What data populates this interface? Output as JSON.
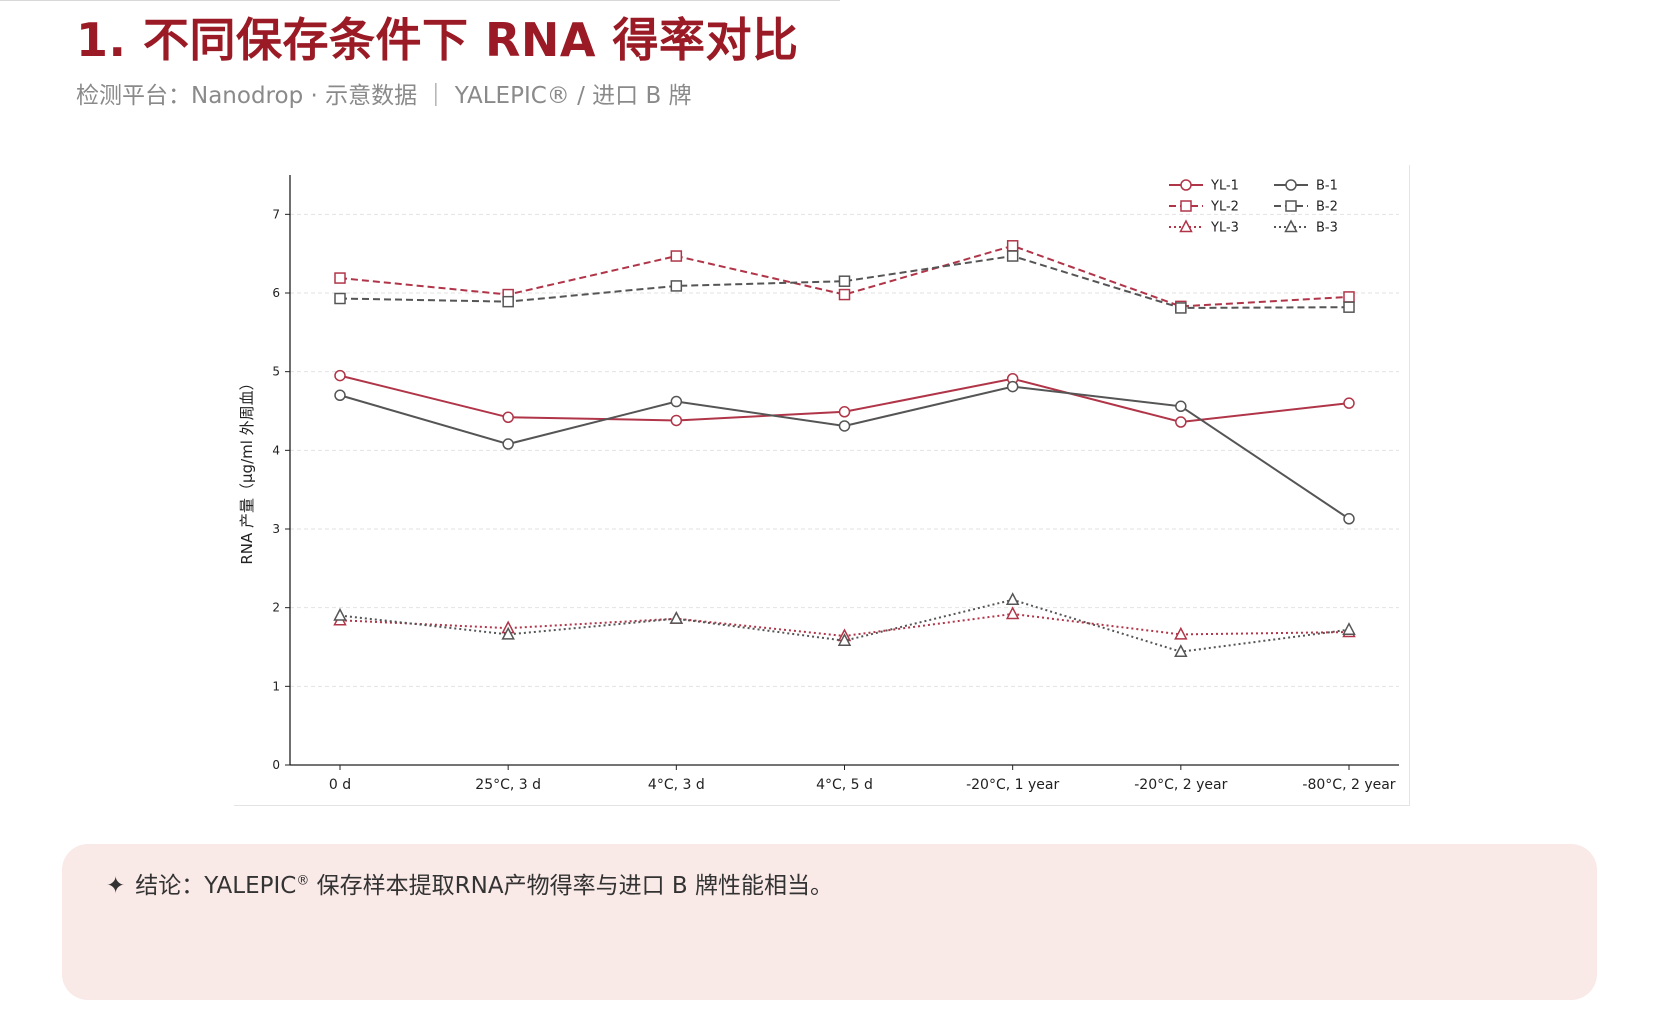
{
  "page": {
    "title": "1. 不同保存条件下 RNA 得率对比",
    "subtitle": "检测平台：Nanodrop · 示意数据  ｜  YALEPIC® / 进口 B 牌"
  },
  "conclusion": {
    "icon": "sparkle-icon",
    "prefix": "结论：YALEPIC",
    "reg": "®",
    "suffix": " 保存样本提取RNA产物得率与进口 B 牌性能相当。"
  },
  "colors": {
    "title": "#9a1a25",
    "yl": "#b03548",
    "b": "#555555",
    "panel_bg": "#f9e9e7"
  },
  "chart_data": {
    "type": "line",
    "ylabel": "RNA 产量（μg/ml 外周血）",
    "xlabel": "",
    "ylim": [
      0,
      7.5
    ],
    "yticks": [
      0,
      1,
      2,
      3,
      4,
      5,
      6,
      7
    ],
    "grid": "horizontal dashed",
    "legend_position": "top-right",
    "categories": [
      "0 d",
      "25°C, 3 d",
      "4°C, 3 d",
      "4°C, 5 d",
      "-20°C, 1 year",
      "-20°C, 2 year",
      "-80°C, 2 year"
    ],
    "series": [
      {
        "name": "YL-1",
        "color": "#b03548",
        "marker": "circle",
        "dash": "solid",
        "values": [
          4.95,
          4.42,
          4.38,
          4.49,
          4.91,
          4.36,
          4.6
        ]
      },
      {
        "name": "YL-2",
        "color": "#b03548",
        "marker": "square",
        "dash": "dashed",
        "values": [
          6.19,
          5.98,
          6.47,
          5.98,
          6.6,
          5.83,
          5.95
        ]
      },
      {
        "name": "YL-3",
        "color": "#b03548",
        "marker": "triangle",
        "dash": "dotted",
        "values": [
          1.84,
          1.74,
          1.86,
          1.64,
          1.92,
          1.66,
          1.69
        ]
      },
      {
        "name": "B-1",
        "color": "#555555",
        "marker": "circle",
        "dash": "solid",
        "values": [
          4.7,
          4.08,
          4.62,
          4.31,
          4.81,
          4.56,
          3.13
        ]
      },
      {
        "name": "B-2",
        "color": "#555555",
        "marker": "square",
        "dash": "dashed",
        "values": [
          5.93,
          5.89,
          6.09,
          6.15,
          6.47,
          5.81,
          5.82
        ]
      },
      {
        "name": "B-3",
        "color": "#555555",
        "marker": "triangle",
        "dash": "dotted",
        "values": [
          1.9,
          1.66,
          1.86,
          1.58,
          2.1,
          1.44,
          1.72
        ]
      }
    ]
  }
}
